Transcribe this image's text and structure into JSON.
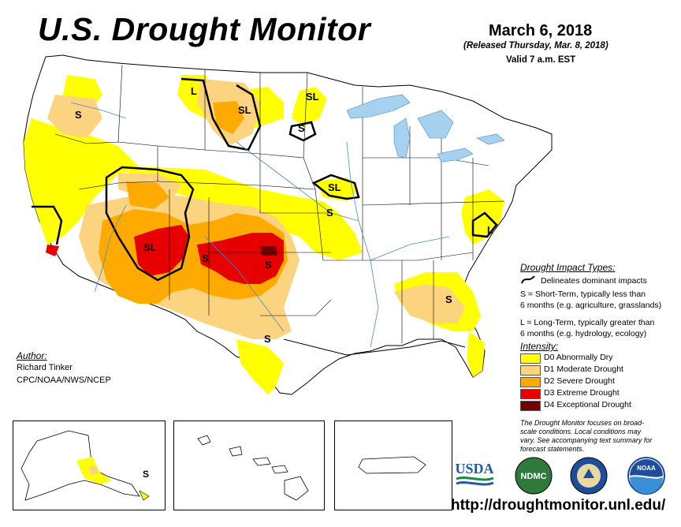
{
  "header": {
    "title": "U.S. Drought Monitor",
    "date": "March 6, 2018",
    "released": "(Released Thursday, Mar. 8, 2018)",
    "valid": "Valid 7 a.m. EST"
  },
  "author": {
    "label": "Author:",
    "name": "Richard Tinker",
    "org": "CPC/NOAA/NWS/NCEP"
  },
  "legend": {
    "impact_title": "Drought Impact Types:",
    "impact_line": "Delineates dominant impacts",
    "short_term_1": "S = Short-Term, typically less than",
    "short_term_2": "6 months (e.g. agriculture, grasslands)",
    "long_term_1": "L = Long-Term, typically greater than",
    "long_term_2": "6 months (e.g. hydrology, ecology)",
    "intensity_title": "Intensity:",
    "categories": [
      {
        "label": "D0 Abnormally Dry",
        "color": "#ffff00"
      },
      {
        "label": "D1 Moderate Drought",
        "color": "#fcd37f"
      },
      {
        "label": "D2 Severe Drought",
        "color": "#ffaa00"
      },
      {
        "label": "D3 Extreme Drought",
        "color": "#e60000"
      },
      {
        "label": "D4 Exceptional Drought",
        "color": "#730000"
      }
    ]
  },
  "note": {
    "line1": "The Drought Monitor focuses on broad-",
    "line2": "scale conditions. Local conditions may",
    "line3": "vary. See accompanying text summary for",
    "line4": "forecast statements."
  },
  "map_labels": {
    "s": "S",
    "l": "L",
    "sl": "SL"
  },
  "logos": {
    "usda": "USDA",
    "ndmc": "NDMC",
    "noaa": "NOAA"
  },
  "url": "http://droughtmonitor.unl.edu/"
}
